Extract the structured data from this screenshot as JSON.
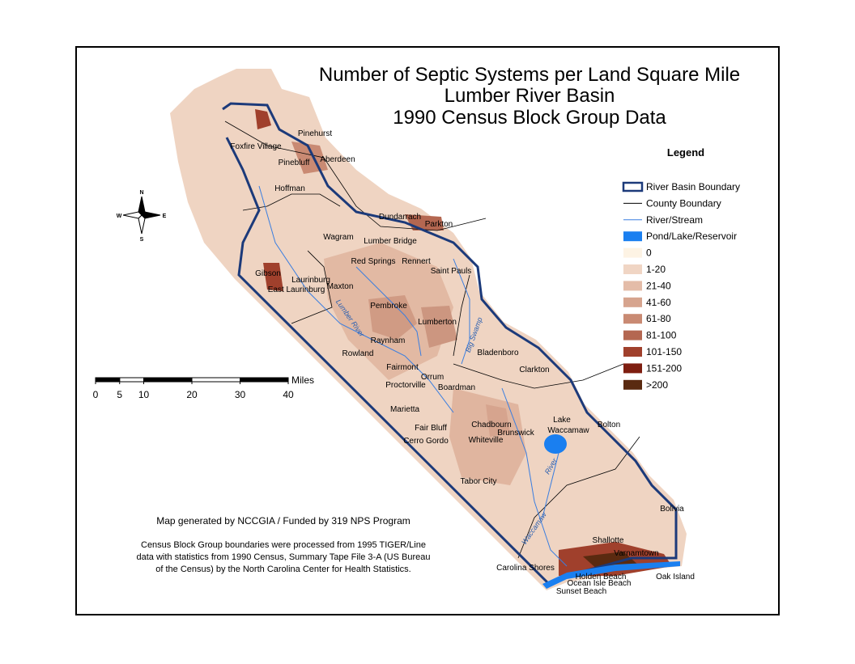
{
  "header": {
    "title": [
      "Number of Septic Systems per Land Square Mile",
      "Lumber River Basin",
      "1990 Census Block Group Data"
    ]
  },
  "legend": {
    "title": "Legend",
    "items": [
      {
        "label": "River Basin Boundary",
        "color": "#1c3a7a"
      },
      {
        "label": "County Boundary",
        "color": "#000000"
      },
      {
        "label": "River/Stream",
        "color": "#3a7ee0"
      },
      {
        "label": "Pond/Lake/Reservoir",
        "color": "#1a7ff0"
      },
      {
        "label": "0",
        "color": "#fdf3e4"
      },
      {
        "label": "1-20",
        "color": "#f0d5c4"
      },
      {
        "label": "21-40",
        "color": "#e4bca8"
      },
      {
        "label": "41-60",
        "color": "#d6a48e"
      },
      {
        "label": "61-80",
        "color": "#c98a73"
      },
      {
        "label": "81-100",
        "color": "#b46751"
      },
      {
        "label": "101-150",
        "color": "#a0402c"
      },
      {
        "label": "151-200",
        "color": "#7e1e10"
      },
      {
        "label": ">200",
        "color": "#5a2a10"
      }
    ]
  },
  "scale": {
    "unit": "Miles",
    "ticks": [
      0,
      5,
      10,
      20,
      30,
      40
    ]
  },
  "compass": [
    "N",
    "E",
    "S",
    "W"
  ],
  "credits": [
    "Map generated by NCCGIA / Funded by 319 NPS Program",
    "Census Block Group boundaries were processed from 1995 TIGER/Line",
    "data with statistics from 1990 Census, Summary Tape File 3-A (US Bureau",
    "of the Census) by the North Carolina Center for Health Statistics."
  ],
  "places": [
    "Pinehurst",
    "Foxfire Village",
    "Pinebluff",
    "Aberdeen",
    "Hoffman",
    "Dundarrach",
    "Parkton",
    "Wagram",
    "Lumber Bridge",
    "Red Springs",
    "Rennert",
    "Saint Pauls",
    "Gibson",
    "Laurinburg",
    "East Laurinburg",
    "Maxton",
    "Pembroke",
    "Lumberton",
    "Raynham",
    "Rowland",
    "Bladenboro",
    "Clarkton",
    "Fairmont",
    "Orrum",
    "Proctorville",
    "Boardman",
    "Marietta",
    "Lake",
    "Waccamaw",
    "Bolton",
    "Chadbourn",
    "Fair Bluff",
    "Brunswick",
    "Whiteville",
    "Cerro Gordo",
    "Tabor City",
    "Bolivia",
    "Shallotte",
    "Carolina Shores",
    "Varnamtown",
    "Holden Beach",
    "Oak Island",
    "Ocean Isle Beach",
    "Sunset Beach"
  ],
  "rivers": [
    "Lumber River",
    "Big Swamp",
    "River",
    "Waccamaw"
  ]
}
